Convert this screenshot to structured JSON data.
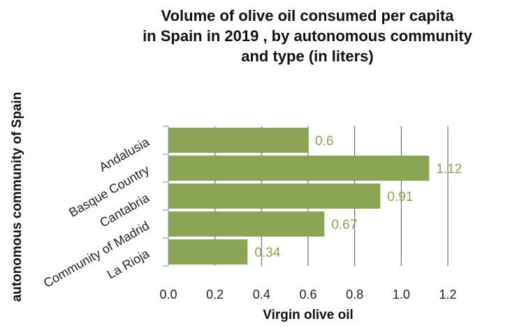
{
  "chart_data": {
    "type": "bar",
    "orientation": "horizontal",
    "title_lines": [
      "Volume of olive oil consumed per capita",
      "in Spain in 2019 , by autonomous community",
      "and type (in liters)"
    ],
    "xlabel": "Virgin olive oil",
    "ylabel": "autonomous community of Spain",
    "categories": [
      "Andalusia",
      "Basque Country",
      "Cantabria",
      "Community of Madrid",
      "La Rioja"
    ],
    "values": [
      0.6,
      1.12,
      0.91,
      0.67,
      0.34
    ],
    "data_labels": [
      "0.6",
      "1.12",
      "0.91",
      "0.67",
      "0.34"
    ],
    "xlim": [
      0,
      1.2
    ],
    "xticks": [
      "0.0",
      "0.2",
      "0.4",
      "0.6",
      "0.8",
      "1.0",
      "1.2"
    ],
    "grid": "vertical",
    "bar_color": "#8aa553",
    "label_color": "#8aa553"
  }
}
